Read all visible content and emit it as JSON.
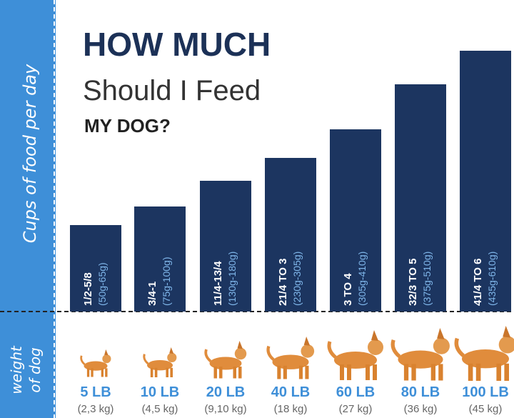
{
  "title": {
    "line1": "HOW MUCH",
    "line2": "Should I Feed",
    "line3": "MY DOG?"
  },
  "side": {
    "top": "Cups of food per day",
    "bottom_line1": "weight",
    "bottom_line2": "of dog"
  },
  "bars": [
    {
      "cups": "1/2-5/8",
      "grams": "(50g-65g)",
      "weight": "5 LB",
      "kg": "(2,3 kg)"
    },
    {
      "cups": "3/4-1",
      "grams": "(75g-100g)",
      "weight": "10 LB",
      "kg": "(4,5 kg)"
    },
    {
      "cups": "11/4-13/4",
      "grams": "(130g-180g)",
      "weight": "20 LB",
      "kg": "(9,10 kg)"
    },
    {
      "cups": "21/4 TO 3",
      "grams": "(230g-305g)",
      "weight": "40 LB",
      "kg": "(18 kg)"
    },
    {
      "cups": "3 TO 4",
      "grams": "(305g-410g)",
      "weight": "60 LB",
      "kg": "(27 kg)"
    },
    {
      "cups": "32/3 TO 5",
      "grams": "(375g-510g)",
      "weight": "80 LB",
      "kg": "(36 kg)"
    },
    {
      "cups": "41/4 TO 6",
      "grams": "(435g-610g)",
      "weight": "100 LB",
      "kg": "(45 kg)"
    }
  ]
}
